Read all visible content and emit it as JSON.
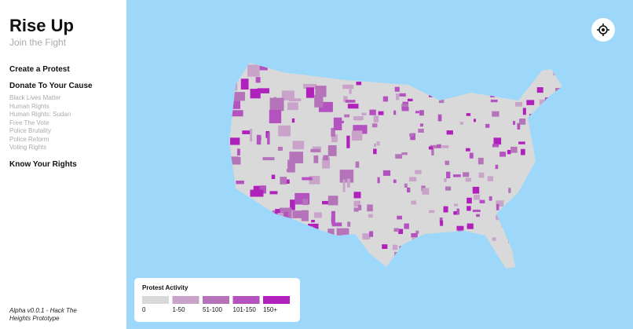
{
  "sidebar": {
    "title": "Rise Up",
    "subtitle": "Join the Fight",
    "nav_top": [
      "Create a Protest",
      "Donate To Your Cause"
    ],
    "causes": [
      "Black Lives Matter",
      "Human Rights",
      "Human Rights: Sudan",
      "Free The Vote",
      "Police Brutality",
      "Police Reform",
      "Voting Rights"
    ],
    "nav_bottom": "Know Your Rights",
    "footer": "Alpha v0.0.1 - Hack The Heights Prototype"
  },
  "legend": {
    "title": "Protest Activity",
    "items": [
      {
        "label": "0",
        "color": "#d9d9d9"
      },
      {
        "label": "1-50",
        "color": "#c9a3c9"
      },
      {
        "label": "51-100",
        "color": "#b574b9"
      },
      {
        "label": "101-150",
        "color": "#b452c0"
      },
      {
        "label": "150+",
        "color": "#b021bc"
      }
    ]
  }
}
